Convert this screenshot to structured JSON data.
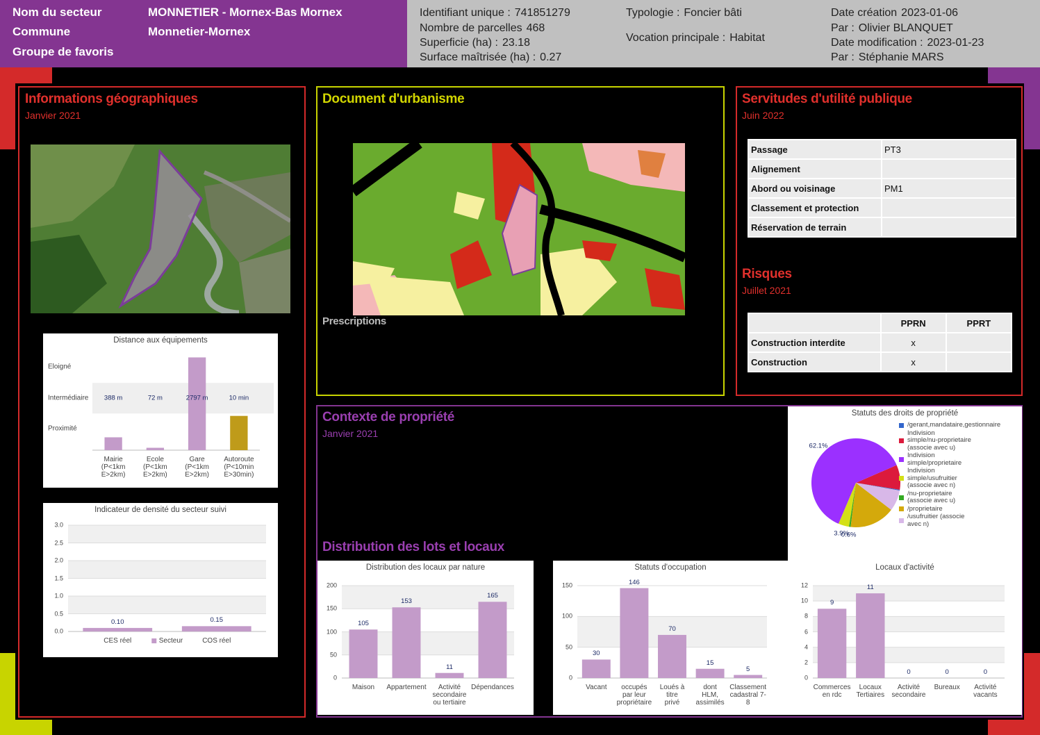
{
  "header": {
    "labels": [
      "Nom du secteur",
      "Commune",
      "Groupe de favoris"
    ],
    "values": [
      "MONNETIER - Mornex-Bas Mornex",
      "Monnetier-Mornex"
    ],
    "info": [
      {
        "label": "Identifiant unique :",
        "value": "741851279"
      },
      {
        "label": "Nombre de parcelles",
        "value": "468"
      },
      {
        "label": "Superficie (ha) :",
        "value": "23.18"
      },
      {
        "label": "Surface maîtrisée (ha) :",
        "value": "0.27"
      },
      {
        "label": "Typologie :",
        "value": "Foncier bâti"
      },
      {
        "label": "Vocation principale :",
        "value": "Habitat"
      },
      {
        "label": "Date création",
        "value": "2023-01-06"
      },
      {
        "label": "Par :",
        "value": "Olivier BLANQUET"
      },
      {
        "label": "Date modification :",
        "value": "2023-01-23"
      },
      {
        "label": "Par :",
        "value": "Stéphanie MARS"
      }
    ]
  },
  "panels": {
    "geo": {
      "title": "Informations géographiques",
      "date": "Janvier 2021"
    },
    "urbanisme": {
      "title": "Document d'urbanisme",
      "subtitle": "Prescriptions"
    },
    "servitudes": {
      "title": "Servitudes d'utilité publique",
      "date": "Juin 2022"
    },
    "risques": {
      "title": "Risques",
      "date": "Juillet 2021"
    },
    "contexte": {
      "title": "Contexte de propriété",
      "date": "Janvier 2021"
    },
    "distribution": {
      "title": "Distribution des lots et locaux"
    }
  },
  "servitudes_table": {
    "rows": [
      [
        "Passage",
        "PT3"
      ],
      [
        "Alignement",
        null
      ],
      [
        "Abord ou voisinage",
        "PM1"
      ],
      [
        "Classement et protection",
        null
      ],
      [
        "Réservation de terrain",
        null
      ]
    ]
  },
  "risques_table": {
    "header": [
      null,
      "PPRN",
      "PPRT"
    ],
    "rows": [
      [
        "Construction interdite",
        "x",
        null
      ],
      [
        "Construction",
        "x",
        null
      ]
    ]
  },
  "chart_data": [
    {
      "type": "bar",
      "title": "Distance aux équipements",
      "categories": [
        "Mairie\n(P<1km\nE>2km)",
        "Ecole\n(P<1km\nE>2km)",
        "Gare\n(P<1km\nE>2km)",
        "Autoroute\n(P<10min\nE>30min)"
      ],
      "series": [
        {
          "color": "#c39bc9",
          "values": [
            388,
            72,
            2797,
            null
          ],
          "value_labels": [
            "388 m",
            "72 m",
            "2797 m",
            null
          ]
        },
        {
          "color": "#bf9b1a",
          "values": [
            null,
            null,
            null,
            10
          ],
          "value_labels": [
            null,
            null,
            null,
            "10 min"
          ],
          "axis": "y2"
        }
      ],
      "ylim": [
        0,
        3100
      ],
      "yticks": [
        {
          "value": 647,
          "label": "Proximité"
        },
        {
          "value": 1566,
          "label": "Intermédiaire"
        },
        {
          "value": 2505,
          "label": "Eloigné"
        }
      ],
      "y2lim": [
        0,
        30
      ],
      "grid": false
    },
    {
      "type": "bar",
      "title": "Indicateur de densité du secteur suivi",
      "categories": [
        "CES réel",
        "COS réel"
      ],
      "series": [
        {
          "name": "Secteur",
          "color": "#c39bc9",
          "values": [
            0.1,
            0.15
          ],
          "value_labels": [
            "0.10",
            "0.15"
          ]
        }
      ],
      "ylim": [
        0,
        3
      ],
      "yticks": [
        {
          "value": 0,
          "label": "0.0"
        },
        {
          "value": 0.5,
          "label": "0.5"
        },
        {
          "value": 1,
          "label": "1.0"
        },
        {
          "value": 1.5,
          "label": "1.5"
        },
        {
          "value": 2,
          "label": "2.0"
        },
        {
          "value": 2.5,
          "label": "2.5"
        },
        {
          "value": 3,
          "label": "3.0"
        }
      ],
      "grid": true,
      "legend": "bottom"
    },
    {
      "type": "pie",
      "title": "Statuts des droits de propriété",
      "categories": [
        "/gerant,mandataire,gestionnaire",
        "Indivision\nsimple/nu-proprietaire\n(associe avec u)",
        "Indivision\nsimple/proprietaire",
        "Indivision\nsimple/usufruitier\n(associe avec n)",
        "/nu-proprietaire\n(associe avec u)",
        "/proprietaire",
        "/usufruitier (associe\navec n)"
      ],
      "values": [
        0.3,
        9.0,
        62.1,
        3.9,
        0.6,
        16.5,
        7.6
      ],
      "value_labels": [
        null,
        null,
        "62.1%",
        "3.9%",
        "0.6%",
        null,
        null
      ],
      "colors": [
        "#3366cc",
        "#dc1a3c",
        "#9b30ff",
        "#d4e016",
        "#33aa22",
        "#d4a90b",
        "#d8b8e8"
      ],
      "legend": "right"
    },
    {
      "type": "bar",
      "title": "Distribution des locaux par nature",
      "categories": [
        "Maison",
        "Appartement",
        "Activité\nsecondaire\nou tertiaire",
        "Dépendances"
      ],
      "series": [
        {
          "color": "#c39bc9",
          "values": [
            105,
            153,
            11,
            165
          ]
        }
      ],
      "ylim": [
        0,
        200
      ],
      "yticks": [
        0,
        50,
        100,
        150,
        200
      ],
      "grid": true
    },
    {
      "type": "bar",
      "title": "Statuts d'occupation",
      "categories": [
        "Vacant",
        "occupés\npar leur\npropriétaire",
        "Loués à\ntitre\nprivé",
        "dont\nHLM,\nassimilés",
        "Classement\ncadastral 7-8"
      ],
      "series": [
        {
          "color": "#c39bc9",
          "values": [
            30,
            146,
            70,
            15,
            5
          ]
        }
      ],
      "ylim": [
        0,
        150
      ],
      "yticks": [
        0,
        50,
        100,
        150
      ],
      "grid": true
    },
    {
      "type": "bar",
      "title": "Locaux d'activité",
      "categories": [
        "Commerces\nen rdc",
        "Locaux\nTertiaires",
        "Activité\nsecondaire",
        "Bureaux",
        "Activité\nvacants"
      ],
      "series": [
        {
          "color": "#c39bc9",
          "values": [
            9,
            11,
            0,
            0,
            0
          ]
        }
      ],
      "ylim": [
        0,
        12
      ],
      "yticks": [
        0,
        2,
        4,
        6,
        8,
        10,
        12
      ],
      "grid": true
    }
  ]
}
